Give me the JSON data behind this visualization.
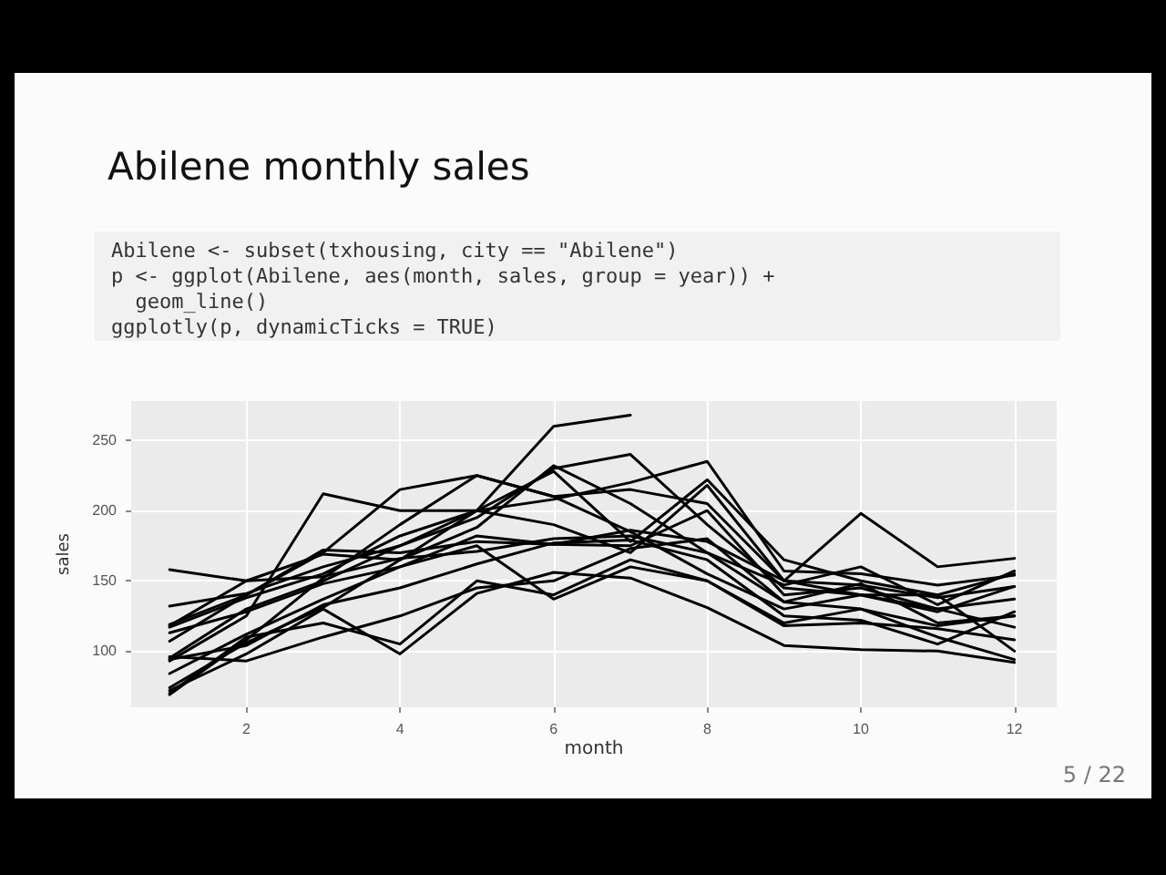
{
  "chart_data": {
    "type": "line",
    "title": "Abilene monthly sales",
    "xlabel": "month",
    "ylabel": "sales",
    "annotations": [
      "Abilene <- subset(txhousing, city == \"Abilene\")",
      "p <- ggplot(Abilene, aes(month, sales, group = year)) +",
      "  geom_line()",
      "ggplotly(p, dynamicTicks = TRUE)",
      "5 / 22"
    ],
    "x": [
      1,
      2,
      3,
      4,
      5,
      6,
      7,
      8,
      9,
      10,
      11,
      12
    ],
    "xlim": [
      0.5,
      12.55
    ],
    "xticks": [
      2,
      4,
      6,
      8,
      10,
      12
    ],
    "ylim": [
      60,
      278
    ],
    "yticks": [
      100,
      150,
      200,
      250
    ],
    "grid": true,
    "marker": "none",
    "line_style": "solid",
    "series": [
      {
        "color": "#000000",
        "values": [
          72,
          98,
          130,
          98,
          141,
          156,
          152,
          131,
          104,
          101,
          100,
          92
        ]
      },
      {
        "color": "#000000",
        "values": [
          70,
          110,
          120,
          105,
          150,
          140,
          165,
          150,
          120,
          130,
          110,
          94
        ]
      },
      {
        "color": "#000000",
        "values": [
          96,
          93,
          110,
          125,
          145,
          150,
          173,
          180,
          135,
          148,
          120,
          125
        ]
      },
      {
        "color": "#000000",
        "values": [
          84,
          112,
          137,
          160,
          175,
          137,
          160,
          150,
          118,
          120,
          116,
          108
        ]
      },
      {
        "color": "#000000",
        "values": [
          107,
          140,
          172,
          170,
          178,
          176,
          175,
          200,
          140,
          145,
          130,
          137
        ]
      },
      {
        "color": "#000000",
        "values": [
          118,
          150,
          169,
          165,
          200,
          190,
          170,
          218,
          150,
          140,
          128,
          146
        ]
      },
      {
        "color": "#000000",
        "values": [
          132,
          141,
          160,
          175,
          200,
          228,
          178,
          222,
          165,
          150,
          140,
          155
        ]
      },
      {
        "color": "#000000",
        "values": [
          158,
          150,
          153,
          166,
          171,
          180,
          182,
          170,
          147,
          160,
          133,
          157
        ]
      },
      {
        "color": "#000000",
        "values": [
          119,
          140,
          170,
          215,
          225,
          210,
          215,
          205,
          150,
          198,
          160,
          166
        ]
      },
      {
        "color": "#000000",
        "values": [
          93,
          125,
          212,
          200,
          200,
          208,
          220,
          235,
          157,
          155,
          147,
          154
        ]
      },
      {
        "color": "#000000",
        "values": [
          95,
          130,
          150,
          175,
          195,
          230,
          240,
          190,
          145,
          140,
          130,
          117
        ]
      },
      {
        "color": "#000000",
        "values": [
          69,
          108,
          152,
          190,
          225,
          210,
          185,
          155,
          130,
          140,
          140,
          100
        ]
      },
      {
        "color": "#000000",
        "values": [
          74,
          106,
          131,
          165,
          188,
          232,
          205,
          170,
          135,
          130,
          118,
          125
        ]
      },
      {
        "color": "#000000",
        "values": [
          94,
          104,
          133,
          145,
          162,
          177,
          179,
          165,
          125,
          122,
          105,
          128
        ]
      },
      {
        "color": "#000000",
        "values": [
          113,
          128,
          148,
          160,
          182,
          176,
          186,
          178,
          150,
          147,
          138,
          146
        ]
      },
      {
        "color": "#000000",
        "values": [
          117,
          138,
          155,
          182,
          200,
          260,
          268,
          null,
          null,
          null,
          null,
          null
        ]
      }
    ]
  }
}
